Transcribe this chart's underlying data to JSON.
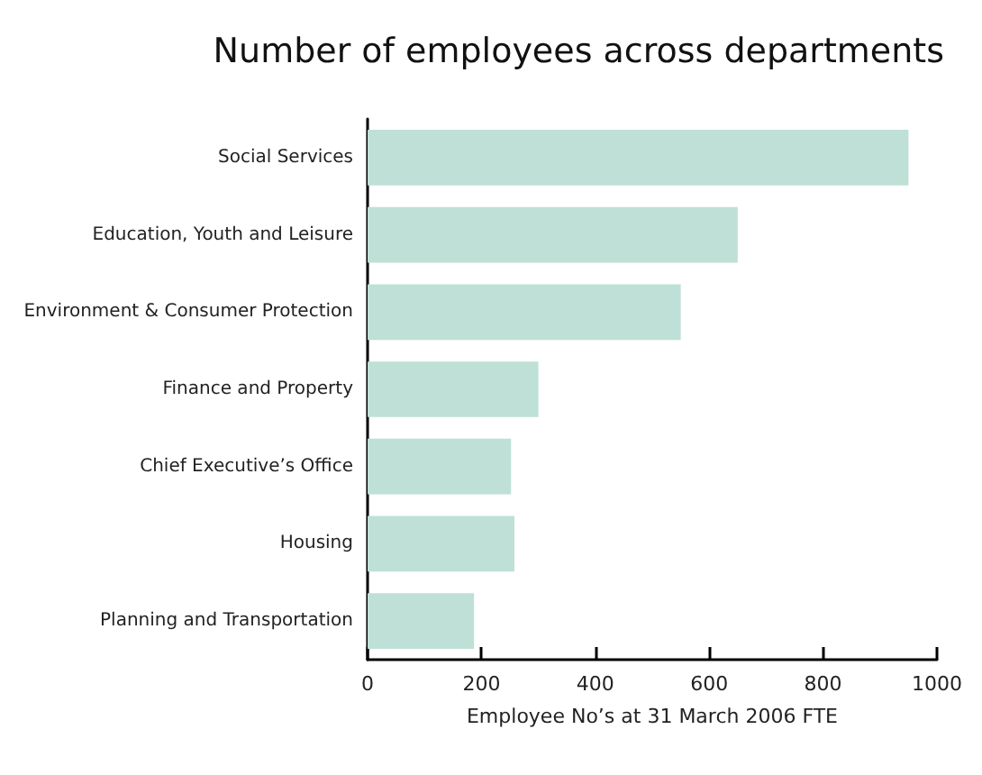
{
  "chart_data": {
    "type": "bar",
    "orientation": "horizontal",
    "title": "Number of employees across departments",
    "xlabel": "Employee No’s at 31 March 2006 FTE",
    "categories": [
      "Social Services",
      "Education, Youth and Leisure",
      "Environment & Consumer Protection",
      "Finance and Property",
      "Chief Executive’s Office",
      "Housing",
      "Planning and Transportation"
    ],
    "values": [
      950,
      650,
      550,
      300,
      252,
      258,
      187
    ],
    "color": "#bfe0d6",
    "xlim": [
      0,
      1000
    ],
    "xticks": [
      0,
      200,
      400,
      600,
      800,
      1000
    ],
    "grid": false
  }
}
